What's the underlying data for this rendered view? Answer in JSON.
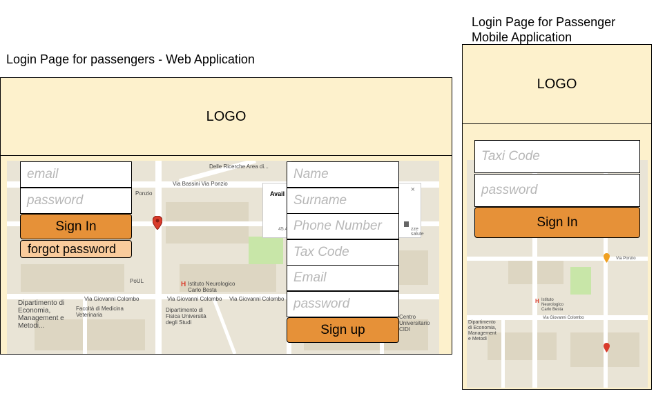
{
  "web": {
    "caption": "Login Page for passengers - Web Application",
    "logo": "LOGO",
    "login": {
      "email_placeholder": "email",
      "password_placeholder": "password",
      "sign_in": "Sign In",
      "forgot": "forgot password"
    },
    "signup": {
      "name_placeholder": "Name",
      "surname_placeholder": "Surname",
      "phone_placeholder": "Phone Number",
      "tax_placeholder": "Tax Code",
      "email_placeholder": "Email",
      "password_placeholder": "password",
      "sign_up": "Sign up"
    },
    "map": {
      "street_bassini": "Via Bassini Via Ponzio",
      "ricerche": "Delle Ricerche Area di...",
      "ponzio": "Ponzio",
      "via_ponzio": "Via Ponzio",
      "colombo": "Via Giovanni Colombo",
      "istituto": "Istituto Neurologico Carlo Besta",
      "dipartimento_economia": "Dipartimento di Economia, Management e Metodi...",
      "medicina": "Facoltà di Medicina Veterinaria",
      "fisica": "Dipartimento di Fisica Università degli Studi",
      "centro": "Centro Universitario CIDI",
      "poul": "PoUL",
      "popup_title": "Avail",
      "popup_line": "45.4",
      "popup_close": "×",
      "popup_side": "zze salute"
    }
  },
  "mobile": {
    "caption_line1": "Login Page for Passenger",
    "caption_line2": "Mobile Application",
    "logo": "LOGO",
    "taxi_placeholder": "Taxi Code",
    "password_placeholder": "password",
    "sign_in": "Sign In",
    "map": {
      "dipartimento": "Dipartimento di Economia, Management e Metodi",
      "colombo": "Via Giovanni Colombo",
      "istituto": "Istituto Neurologico Carlo Besta",
      "ponzio": "Via Ponzio"
    }
  },
  "colors": {
    "background_panel": "#fdf1cc",
    "button": "#e69138",
    "link_button": "#f9cb9c",
    "map_base": "#e9e4d6",
    "park": "#c8e6a8",
    "road": "#ffffff",
    "pin": "#d93b2b"
  },
  "icons": [
    "map-pin-icon",
    "hospital-icon",
    "close-icon",
    "trash-icon",
    "school-icon"
  ]
}
